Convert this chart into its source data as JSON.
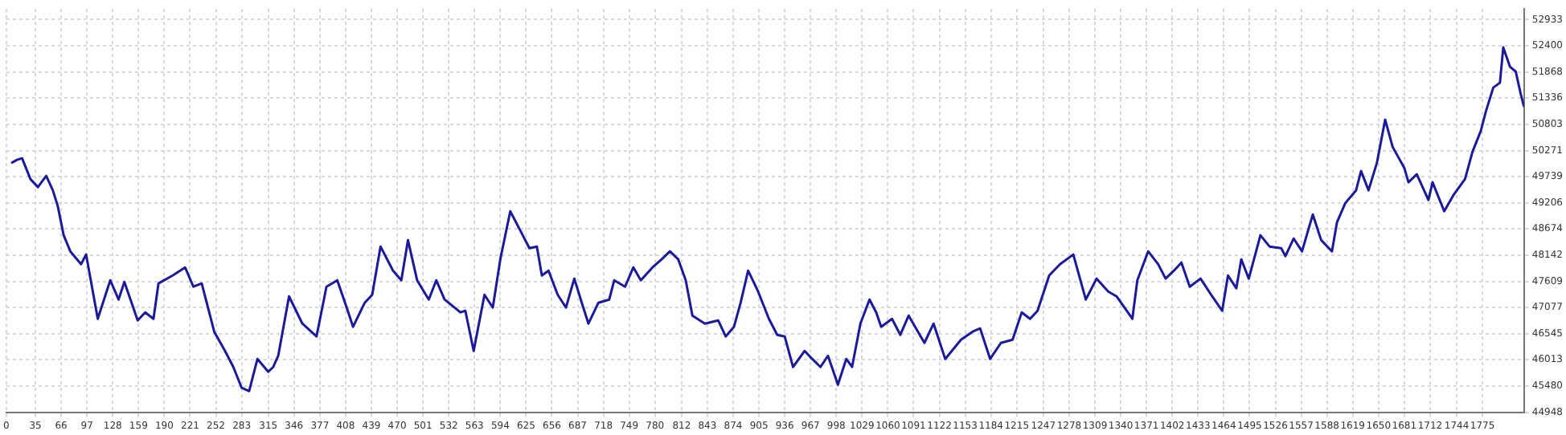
{
  "chart_data": {
    "type": "line",
    "color": "#1a1a9a",
    "marker": "none",
    "grid": true,
    "legend": false,
    "x": [
      6,
      13,
      19,
      29,
      38,
      48,
      56,
      62,
      69,
      77,
      90,
      96,
      110,
      125,
      135,
      142,
      158,
      167,
      177,
      183,
      200,
      215,
      225,
      235,
      250,
      263,
      273,
      283,
      292,
      302,
      315,
      321,
      327,
      340,
      356,
      373,
      385,
      398,
      408,
      417,
      431,
      440,
      450,
      465,
      475,
      483,
      494,
      508,
      517,
      527,
      546,
      552,
      562,
      575,
      585,
      594,
      606,
      619,
      629,
      638,
      644,
      652,
      663,
      673,
      683,
      692,
      700,
      712,
      725,
      731,
      744,
      754,
      763,
      777,
      788,
      798,
      808,
      817,
      825,
      840,
      856,
      865,
      875,
      883,
      892,
      904,
      917,
      927,
      936,
      946,
      960,
      969,
      979,
      988,
      1000,
      1010,
      1017,
      1027,
      1038,
      1046,
      1052,
      1065,
      1075,
      1085,
      1104,
      1115,
      1129,
      1148,
      1162,
      1171,
      1183,
      1196,
      1210,
      1221,
      1231,
      1240,
      1254,
      1267,
      1283,
      1298,
      1311,
      1325,
      1335,
      1354,
      1360,
      1373,
      1385,
      1394,
      1404,
      1413,
      1423,
      1436,
      1450,
      1462,
      1469,
      1479,
      1485,
      1494,
      1508,
      1519,
      1533,
      1538,
      1548,
      1558,
      1571,
      1581,
      1594,
      1600,
      1610,
      1623,
      1629,
      1638,
      1648,
      1658,
      1667,
      1681,
      1686,
      1696,
      1710,
      1715,
      1729,
      1740,
      1754,
      1763,
      1773,
      1779,
      1788,
      1796,
      1800,
      1808,
      1815,
      1821,
      1825
    ],
    "values": [
      50016,
      50082,
      50114,
      49690,
      49527,
      49755,
      49461,
      49135,
      48547,
      48220,
      47959,
      48155,
      46848,
      47632,
      47240,
      47599,
      46815,
      46979,
      46848,
      47567,
      47730,
      47893,
      47501,
      47567,
      46587,
      46195,
      45868,
      45444,
      45378,
      46032,
      45770,
      45868,
      46097,
      47305,
      46750,
      46489,
      47501,
      47632,
      47142,
      46685,
      47175,
      47338,
      48318,
      47828,
      47632,
      48449,
      47632,
      47240,
      47632,
      47240,
      46979,
      47011,
      46195,
      47338,
      47077,
      48057,
      49036,
      48612,
      48285,
      48318,
      47730,
      47828,
      47338,
      47077,
      47665,
      47175,
      46750,
      47175,
      47240,
      47632,
      47501,
      47893,
      47632,
      47893,
      48057,
      48220,
      48057,
      47632,
      46913,
      46750,
      46815,
      46489,
      46685,
      47175,
      47828,
      47403,
      46848,
      46522,
      46489,
      45868,
      46195,
      46032,
      45868,
      46097,
      45509,
      46032,
      45868,
      46750,
      47240,
      46979,
      46685,
      46848,
      46522,
      46913,
      46358,
      46750,
      46032,
      46424,
      46587,
      46652,
      46032,
      46358,
      46424,
      46979,
      46848,
      47011,
      47730,
      47959,
      48155,
      47240,
      47665,
      47403,
      47305,
      46848,
      47632,
      48220,
      47959,
      47665,
      47828,
      47991,
      47501,
      47665,
      47305,
      47011,
      47730,
      47469,
      48057,
      47665,
      48547,
      48318,
      48285,
      48122,
      48481,
      48220,
      48971,
      48449,
      48220,
      48808,
      49200,
      49461,
      49853,
      49461,
      50016,
      50898,
      50343,
      49918,
      49625,
      49788,
      49265,
      49625,
      49036,
      49363,
      49690,
      50245,
      50670,
      51061,
      51551,
      51649,
      52368,
      51976,
      51878,
      51421,
      51160
    ],
    "xlim": [
      0,
      1825
    ],
    "ylim": [
      44948,
      53150
    ],
    "xticks": [
      0,
      35,
      66,
      97,
      128,
      159,
      190,
      221,
      252,
      283,
      315,
      346,
      377,
      408,
      439,
      470,
      501,
      532,
      563,
      594,
      625,
      656,
      687,
      718,
      749,
      780,
      812,
      843,
      874,
      905,
      936,
      967,
      998,
      1029,
      1060,
      1091,
      1122,
      1153,
      1184,
      1215,
      1247,
      1278,
      1309,
      1340,
      1371,
      1402,
      1433,
      1464,
      1495,
      1526,
      1557,
      1588,
      1619,
      1650,
      1681,
      1712,
      1744,
      1775
    ],
    "yticks": [
      44948,
      45480,
      46013,
      46545,
      47077,
      47609,
      48142,
      48674,
      49206,
      49739,
      50271,
      50803,
      51336,
      51868,
      52400,
      52933
    ]
  }
}
